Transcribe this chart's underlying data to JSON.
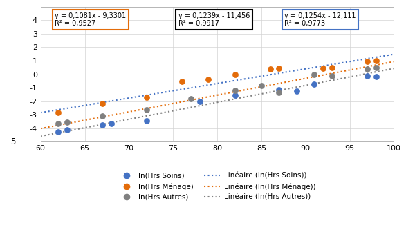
{
  "title": "",
  "xlim": [
    60,
    100
  ],
  "ylim": [
    -5,
    5
  ],
  "xticks": [
    60,
    65,
    70,
    75,
    80,
    85,
    90,
    95,
    100
  ],
  "yticks": [
    -4,
    -3,
    -2,
    -1,
    0,
    1,
    2,
    3,
    4
  ],
  "ytick_labels": [
    "-4",
    "-3",
    "-2",
    "-1",
    "0",
    "1",
    "2",
    "3",
    "4"
  ],
  "soins_x": [
    62,
    63,
    67,
    68,
    72,
    78,
    82,
    87,
    89,
    91,
    97,
    98
  ],
  "soins_y": [
    -4.25,
    -4.1,
    -3.75,
    -3.65,
    -3.45,
    -2.0,
    -1.55,
    -1.15,
    -1.25,
    -0.75,
    -0.1,
    -0.15
  ],
  "menage_x": [
    62,
    67,
    72,
    76,
    79,
    82,
    86,
    87,
    92,
    93,
    97,
    98
  ],
  "menage_y": [
    -2.85,
    -2.15,
    -1.7,
    -0.55,
    -0.4,
    0.0,
    0.4,
    0.45,
    0.45,
    0.5,
    0.95,
    1.0
  ],
  "autres_x": [
    62,
    63,
    67,
    72,
    77,
    82,
    85,
    87,
    91,
    93,
    97,
    98
  ],
  "autres_y": [
    -3.65,
    -3.55,
    -3.1,
    -2.65,
    -1.8,
    -1.2,
    -0.85,
    -1.35,
    0.0,
    -0.1,
    0.4,
    0.5
  ],
  "eq_soins_slope": 0.1081,
  "eq_soins_intercept": -9.3301,
  "eq_soins_label": "y = 0,1081x - 9,3301\nR² = 0,9527",
  "eq_soins_box_color": "#E36C0A",
  "eq_menage_slope": 0.1239,
  "eq_menage_intercept": -11.456,
  "eq_menage_label": "y = 0,1239x - 11,456\nR² = 0,9917",
  "eq_menage_box_color": "#000000",
  "eq_autres_slope": 0.1254,
  "eq_autres_intercept": -12.111,
  "eq_autres_label": "y = 0,1254x - 12,111\nR² = 0,9773",
  "eq_autres_box_color": "#4472C4",
  "color_soins": "#4472C4",
  "color_menage": "#E36C0A",
  "color_autres": "#808080",
  "color_line_soins": "#4472C4",
  "color_line_menage": "#E36C0A",
  "color_line_autres": "#808080",
  "leg1": "ln(Hrs Soins)",
  "leg2": "ln(Hrs Ménage)",
  "leg3": "ln(Hrs Autres)",
  "leg4": "Linéaire (ln(Hrs Soins))",
  "leg5": "Linéaire (ln(Hrs Ménage))",
  "leg6": "Linéaire (ln(Hrs Autres))"
}
